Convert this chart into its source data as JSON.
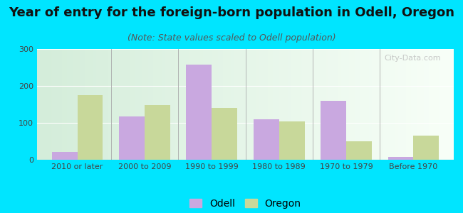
{
  "title": "Year of entry for the foreign-born population in Odell, Oregon",
  "subtitle": "(Note: State values scaled to Odell population)",
  "categories": [
    "2010 or later",
    "2000 to 2009",
    "1990 to 1999",
    "1980 to 1989",
    "1970 to 1979",
    "Before 1970"
  ],
  "odell_values": [
    22,
    117,
    258,
    110,
    160,
    8
  ],
  "oregon_values": [
    175,
    148,
    140,
    103,
    50,
    65
  ],
  "odell_color": "#c9a8e0",
  "oregon_color": "#c8d89a",
  "background_outer": "#00e5ff",
  "background_inner_left": "#d4edda",
  "background_inner_right": "#f8fff8",
  "ylim": [
    0,
    300
  ],
  "yticks": [
    0,
    100,
    200,
    300
  ],
  "title_fontsize": 13,
  "subtitle_fontsize": 9,
  "tick_fontsize": 8,
  "legend_fontsize": 10,
  "watermark_text": "City-Data.com",
  "bar_width": 0.38
}
